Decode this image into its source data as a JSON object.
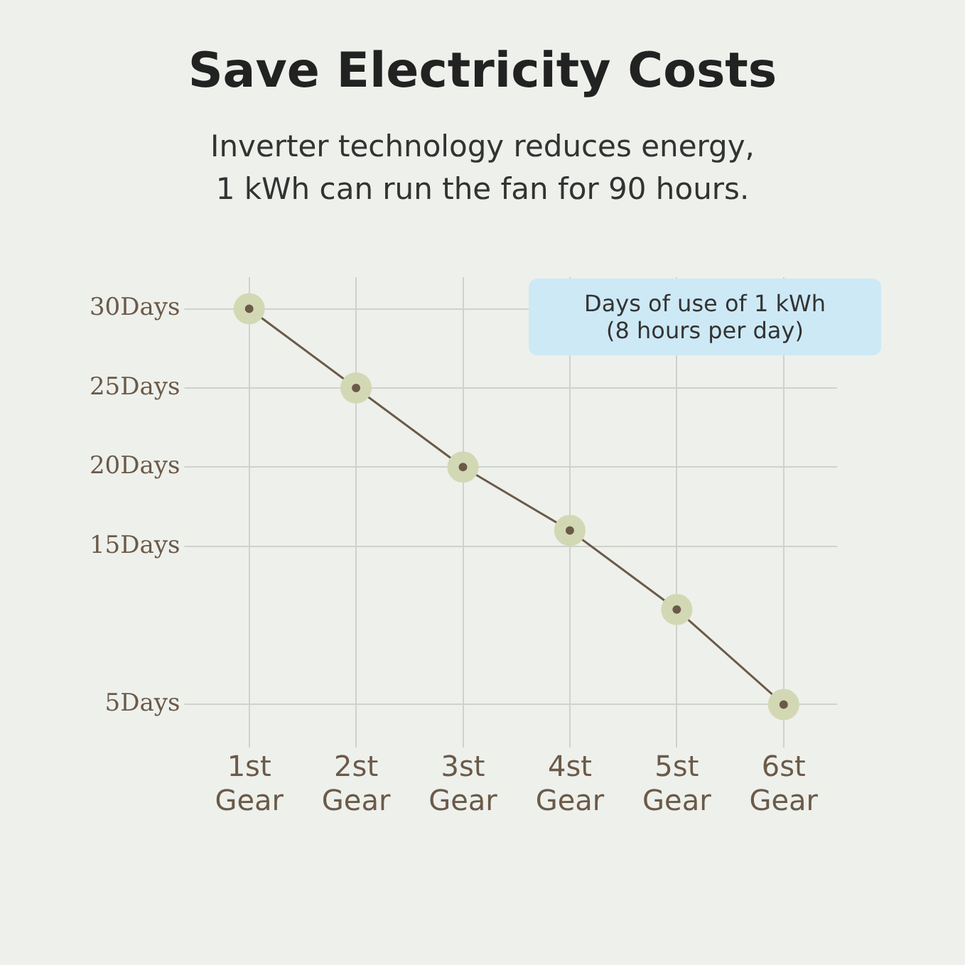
{
  "chart_data": {
    "type": "line",
    "title": "Save Electricity Costs",
    "subtitle": "Inverter technology reduces energy,\n1 kWh can run the fan for 90 hours.",
    "categories": [
      "1st Gear",
      "2st Gear",
      "3st Gear",
      "4st Gear",
      "5st Gear",
      "6st Gear"
    ],
    "series": [
      {
        "color": "#6b5a48",
        "values": [
          30,
          25,
          20,
          16,
          11,
          5
        ]
      }
    ],
    "ylim": [
      3,
      32
    ],
    "yticks": [
      {
        "value": 5,
        "label": "5Days"
      },
      {
        "value": 15,
        "label": "15Days"
      },
      {
        "value": 20,
        "label": "20Days"
      },
      {
        "value": 25,
        "label": "25Days"
      },
      {
        "value": 30,
        "label": "30Days"
      }
    ],
    "annotations": [
      "Days of use of 1 kWh\n(8 hours per day)"
    ],
    "grid": true,
    "legend": false,
    "marker": "circle",
    "line_style": "solid"
  }
}
